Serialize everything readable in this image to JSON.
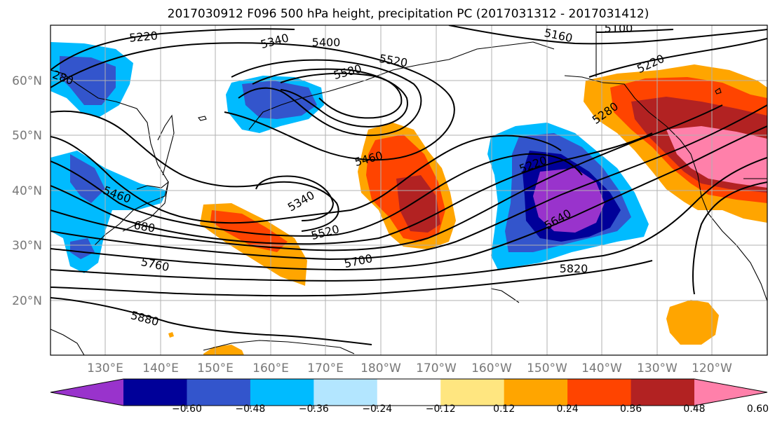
{
  "title": "2017030912 F096 500 hPa height, precipitation PC (2017031312 - 2017031412)",
  "lat_labels": [
    "60°N",
    "50°N",
    "40°N",
    "30°N",
    "20°N"
  ],
  "lon_labels": [
    "130°E",
    "140°E",
    "150°E",
    "160°E",
    "170°E",
    "180°W",
    "170°W",
    "160°W",
    "150°W",
    "140°W",
    "130°W",
    "120°W"
  ],
  "colorbar": {
    "colors": [
      "#9933cc",
      "#000099",
      "#3355cc",
      "#00bbff",
      "#b3e6ff",
      "#ffffff",
      "#ffe680",
      "#ffa500",
      "#ff4400",
      "#b22222",
      "#ff80aa"
    ],
    "tick_labels": [
      "−0.60",
      "−0.48",
      "−0.36",
      "−0.24",
      "−0.12",
      "0.12",
      "0.24",
      "0.36",
      "0.48",
      "0.60"
    ]
  },
  "contour_labels": [
    "5220",
    "5340",
    "5400",
    "5520",
    "5580",
    "5160",
    "5100",
    "5220",
    "280",
    "5460",
    "5340",
    "5520",
    "5700",
    "5760",
    "5880",
    "5220",
    "5640",
    "5820",
    "5280",
    "5460",
    "680"
  ]
}
